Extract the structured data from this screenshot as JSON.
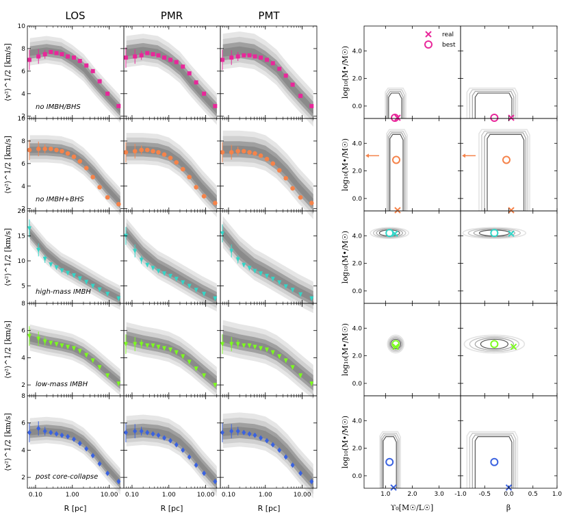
{
  "chart_data": {
    "type": "multi-panel",
    "columns": [
      "LOS",
      "PMR",
      "PMT"
    ],
    "left_xlabel": "R [pc]",
    "left_xticks": [
      "0.10",
      "1.00",
      "10.00"
    ],
    "left_xlim": [
      0.06,
      25
    ],
    "left_ylabel": "⟨v²⟩^1/2 [km/s]",
    "right_xlabels": [
      "ϒ₀[M☉/L☉]",
      "β"
    ],
    "right_ylabel": "log₁₀(M•/M☉)",
    "right_xticks_1": [
      "1.0",
      "2.0",
      "3.0"
    ],
    "right_xticks_2": [
      "-1.0",
      "-0.5",
      "0.0",
      "0.5",
      "1.0"
    ],
    "right_ylim": [
      -0.9,
      5.8
    ],
    "right_yticks": [
      "0.0",
      "2.0",
      "4.0"
    ],
    "legend": {
      "real": "real",
      "best": "best"
    },
    "rows": [
      {
        "label": "no IMBH/BHS",
        "color": "#e8279a",
        "marker": "square",
        "ylim": [
          1.8,
          10
        ],
        "yticks": [
          2,
          4,
          6,
          8,
          10
        ],
        "model": [
          [
            0.07,
            7.6
          ],
          [
            0.2,
            7.8
          ],
          [
            0.5,
            7.6
          ],
          [
            1.0,
            7.0
          ],
          [
            2.0,
            6.2
          ],
          [
            4.0,
            5.0
          ],
          [
            8.0,
            3.9
          ],
          [
            20.0,
            2.5
          ]
        ],
        "los": [
          7.0,
          7.3,
          7.5,
          7.7,
          7.6,
          7.5,
          7.3,
          7.2,
          6.9,
          6.5,
          6.0,
          5.1,
          4.0,
          2.9
        ],
        "pmr": [
          7.2,
          7.3,
          7.4,
          7.6,
          7.5,
          7.4,
          7.2,
          7.0,
          6.8,
          6.4,
          5.8,
          5.0,
          4.0,
          2.9
        ],
        "pmt": [
          7.0,
          7.2,
          7.3,
          7.4,
          7.4,
          7.3,
          7.2,
          7.0,
          6.7,
          6.2,
          5.6,
          4.8,
          3.8,
          2.9
        ],
        "ml_real": 1.45,
        "ml_best": 1.35,
        "beta_real": 0.05,
        "beta_best": -0.3,
        "bh_real": -0.9,
        "bh_best": -0.9,
        "arrow": false
      },
      {
        "label": "no IMBH+BHS",
        "color": "#f5834a",
        "marker": "circle",
        "ylim": [
          1.8,
          10
        ],
        "yticks": [
          2,
          4,
          6,
          8,
          10
        ],
        "model": [
          [
            0.07,
            7.2
          ],
          [
            0.2,
            7.2
          ],
          [
            0.5,
            7.1
          ],
          [
            1.0,
            6.8
          ],
          [
            2.0,
            6.1
          ],
          [
            4.0,
            5.1
          ],
          [
            8.0,
            3.9
          ],
          [
            20.0,
            2.5
          ]
        ],
        "los": [
          7.2,
          7.3,
          7.3,
          7.3,
          7.2,
          7.1,
          6.9,
          6.6,
          6.2,
          5.6,
          4.8,
          3.9,
          3.0,
          2.4
        ],
        "pmr": [
          7.0,
          7.1,
          7.2,
          7.2,
          7.1,
          7.0,
          6.8,
          6.5,
          6.1,
          5.5,
          4.8,
          3.9,
          3.1,
          2.5
        ],
        "pmt": [
          7.0,
          7.0,
          7.1,
          7.1,
          7.0,
          6.9,
          6.7,
          6.4,
          6.0,
          5.4,
          4.7,
          3.8,
          3.0,
          2.5
        ],
        "ml_real": 1.45,
        "ml_best": 1.4,
        "beta_real": 0.05,
        "beta_best": -0.05,
        "bh_real": -0.9,
        "bh_best": 2.8,
        "arrow": true,
        "arrow_y": 3.1
      },
      {
        "label": "high-mass IMBH",
        "color": "#33d6c8",
        "marker": "downtriangle",
        "ylim": [
          1.5,
          20
        ],
        "yticks": [
          5,
          10,
          15,
          20
        ],
        "model": [
          [
            0.07,
            15.5
          ],
          [
            0.2,
            11.5
          ],
          [
            0.5,
            9.0
          ],
          [
            1.0,
            7.8
          ],
          [
            2.0,
            6.5
          ],
          [
            4.0,
            5.2
          ],
          [
            8.0,
            3.9
          ],
          [
            20.0,
            2.4
          ]
        ],
        "los": [
          16.5,
          12.2,
          10.4,
          9.3,
          8.7,
          8.1,
          7.6,
          7.1,
          6.5,
          5.8,
          5.0,
          4.3,
          3.4,
          2.5
        ],
        "pmr": [
          15.0,
          12.0,
          10.2,
          9.2,
          8.6,
          8.0,
          7.5,
          7.0,
          6.4,
          5.7,
          5.0,
          4.2,
          3.4,
          2.5
        ],
        "pmt": [
          15.5,
          12.0,
          10.3,
          9.2,
          8.6,
          8.0,
          7.5,
          7.0,
          6.4,
          5.7,
          4.9,
          4.2,
          3.3,
          2.5
        ],
        "ml_real": 1.35,
        "ml_best": 1.15,
        "beta_real": 0.05,
        "beta_best": -0.3,
        "bh_real": 4.15,
        "bh_best": 4.2,
        "arrow": false
      },
      {
        "label": "low-mass IMBH",
        "color": "#7cfc1e",
        "marker": "downtriangle",
        "ylim": [
          1.2,
          8
        ],
        "yticks": [
          2,
          4,
          6,
          8
        ],
        "model": [
          [
            0.07,
            5.4
          ],
          [
            0.2,
            5.1
          ],
          [
            0.5,
            4.9
          ],
          [
            1.0,
            4.7
          ],
          [
            2.0,
            4.3
          ],
          [
            4.0,
            3.7
          ],
          [
            8.0,
            3.0
          ],
          [
            20.0,
            2.1
          ]
        ],
        "los": [
          5.6,
          5.4,
          5.2,
          5.1,
          5.0,
          4.9,
          4.8,
          4.7,
          4.5,
          4.2,
          3.8,
          3.3,
          2.7,
          2.1
        ],
        "pmr": [
          5.0,
          5.0,
          5.0,
          4.9,
          4.9,
          4.8,
          4.7,
          4.6,
          4.4,
          4.1,
          3.7,
          3.2,
          2.7,
          2.0
        ],
        "pmt": [
          5.0,
          5.0,
          5.0,
          4.9,
          4.9,
          4.8,
          4.7,
          4.6,
          4.4,
          4.1,
          3.8,
          3.3,
          2.7,
          2.1
        ],
        "ml_real": 1.38,
        "ml_best": 1.38,
        "beta_real": 0.1,
        "beta_best": -0.3,
        "bh_real": 2.65,
        "bh_best": 2.85,
        "arrow": false
      },
      {
        "label": "post core-collapse",
        "color": "#3a62e0",
        "marker": "diamond",
        "ylim": [
          1.2,
          8
        ],
        "yticks": [
          2,
          4,
          6,
          8
        ],
        "model": [
          [
            0.07,
            5.3
          ],
          [
            0.2,
            5.4
          ],
          [
            0.5,
            5.3
          ],
          [
            1.0,
            5.1
          ],
          [
            2.0,
            4.6
          ],
          [
            4.0,
            3.8
          ],
          [
            8.0,
            2.8
          ],
          [
            20.0,
            1.6
          ]
        ],
        "los": [
          5.3,
          5.6,
          5.4,
          5.3,
          5.2,
          5.1,
          5.0,
          4.8,
          4.5,
          4.1,
          3.6,
          3.0,
          2.3,
          1.7
        ],
        "pmr": [
          5.3,
          5.4,
          5.4,
          5.3,
          5.2,
          5.1,
          4.9,
          4.7,
          4.4,
          4.0,
          3.5,
          2.9,
          2.3,
          1.7
        ],
        "pmt": [
          5.3,
          5.4,
          5.4,
          5.3,
          5.2,
          5.1,
          4.9,
          4.7,
          4.4,
          4.0,
          3.5,
          2.9,
          2.3,
          1.7
        ],
        "ml_real": 1.3,
        "ml_best": 1.15,
        "beta_real": 0.0,
        "beta_best": -0.3,
        "bh_real": -0.9,
        "bh_best": 1.0,
        "arrow": false
      }
    ],
    "data_r": [
      0.068,
      0.12,
      0.18,
      0.26,
      0.37,
      0.52,
      0.75,
      1.1,
      1.6,
      2.4,
      3.6,
      5.5,
      9.0,
      18.0
    ]
  }
}
